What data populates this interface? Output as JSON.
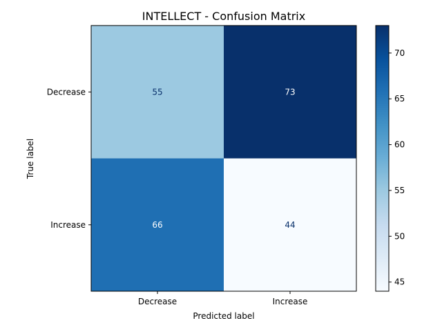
{
  "chart_data": {
    "type": "heatmap",
    "title": "INTELLECT - Confusion Matrix",
    "xlabel": "Predicted label",
    "ylabel": "True label",
    "x_categories": [
      "Decrease",
      "Increase"
    ],
    "y_categories": [
      "Decrease",
      "Increase"
    ],
    "values": [
      [
        55,
        73
      ],
      [
        66,
        44
      ]
    ],
    "colormap": "Blues",
    "colorbar": {
      "min": 44,
      "max": 73,
      "ticks": [
        45,
        50,
        55,
        60,
        65,
        70
      ]
    },
    "cell_text_colors": {
      "on_light": "#08306b",
      "on_dark": "#ffffff"
    },
    "grid": false
  }
}
